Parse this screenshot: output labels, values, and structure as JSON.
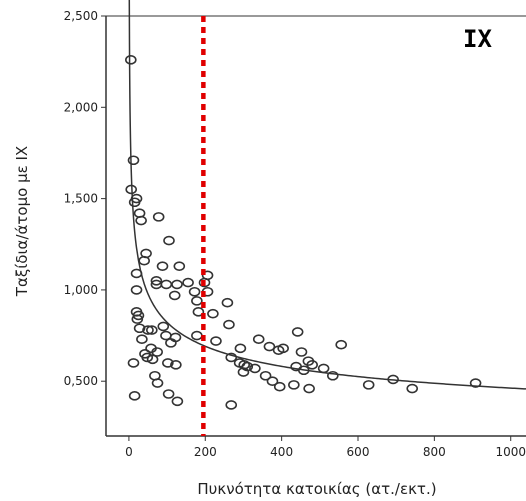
{
  "chart_data": {
    "type": "scatter",
    "panel_label": "IX",
    "xlabel": "Πυκνότητα κατοικίας (ατ./εκτ.)",
    "ylabel": "Ταξίδια/άτομο με ΙΧ",
    "xlim": [
      -60,
      1040
    ],
    "ylim": [
      0.2,
      2.5
    ],
    "x_ticks": [
      0,
      200,
      400,
      600,
      800,
      1000
    ],
    "x_tick_labels": [
      "0",
      "200",
      "400",
      "600",
      "800",
      "1000"
    ],
    "y_ticks": [
      0.5,
      1.0,
      1.5,
      2.0,
      2.5
    ],
    "y_tick_labels": [
      "0,500",
      "1,000",
      "1,500",
      "2,000",
      "2,500"
    ],
    "grid": false,
    "marker": "open-circle",
    "reference_line": {
      "x": 195,
      "color": "#e00000",
      "style": "dotted"
    },
    "fit_curve": {
      "type": "power",
      "a": 2.6,
      "b": -0.25,
      "x_start": 1,
      "x_end": 1040,
      "color": "#333333"
    },
    "points": [
      {
        "x": 5,
        "y": 2.26
      },
      {
        "x": 12,
        "y": 1.71
      },
      {
        "x": 6,
        "y": 1.55
      },
      {
        "x": 15,
        "y": 1.48
      },
      {
        "x": 20,
        "y": 1.5
      },
      {
        "x": 28,
        "y": 1.42
      },
      {
        "x": 32,
        "y": 1.38
      },
      {
        "x": 45,
        "y": 1.2
      },
      {
        "x": 78,
        "y": 1.4
      },
      {
        "x": 105,
        "y": 1.27
      },
      {
        "x": 40,
        "y": 1.16
      },
      {
        "x": 20,
        "y": 1.09
      },
      {
        "x": 88,
        "y": 1.13
      },
      {
        "x": 132,
        "y": 1.13
      },
      {
        "x": 98,
        "y": 1.03
      },
      {
        "x": 72,
        "y": 1.05
      },
      {
        "x": 72,
        "y": 1.03
      },
      {
        "x": 20,
        "y": 1.0
      },
      {
        "x": 126,
        "y": 1.03
      },
      {
        "x": 155,
        "y": 1.04
      },
      {
        "x": 120,
        "y": 0.97
      },
      {
        "x": 172,
        "y": 0.99
      },
      {
        "x": 198,
        "y": 1.04
      },
      {
        "x": 206,
        "y": 1.08
      },
      {
        "x": 206,
        "y": 0.99
      },
      {
        "x": 178,
        "y": 0.94
      },
      {
        "x": 220,
        "y": 0.87
      },
      {
        "x": 258,
        "y": 0.93
      },
      {
        "x": 20,
        "y": 0.88
      },
      {
        "x": 22,
        "y": 0.84
      },
      {
        "x": 25,
        "y": 0.86
      },
      {
        "x": 28,
        "y": 0.79
      },
      {
        "x": 50,
        "y": 0.78
      },
      {
        "x": 60,
        "y": 0.78
      },
      {
        "x": 90,
        "y": 0.8
      },
      {
        "x": 97,
        "y": 0.75
      },
      {
        "x": 122,
        "y": 0.74
      },
      {
        "x": 178,
        "y": 0.75
      },
      {
        "x": 182,
        "y": 0.88
      },
      {
        "x": 262,
        "y": 0.81
      },
      {
        "x": 228,
        "y": 0.72
      },
      {
        "x": 268,
        "y": 0.63
      },
      {
        "x": 34,
        "y": 0.73
      },
      {
        "x": 58,
        "y": 0.68
      },
      {
        "x": 74,
        "y": 0.66
      },
      {
        "x": 48,
        "y": 0.63
      },
      {
        "x": 42,
        "y": 0.65
      },
      {
        "x": 12,
        "y": 0.6
      },
      {
        "x": 62,
        "y": 0.62
      },
      {
        "x": 102,
        "y": 0.6
      },
      {
        "x": 110,
        "y": 0.71
      },
      {
        "x": 123,
        "y": 0.59
      },
      {
        "x": 292,
        "y": 0.68
      },
      {
        "x": 340,
        "y": 0.73
      },
      {
        "x": 368,
        "y": 0.69
      },
      {
        "x": 404,
        "y": 0.68
      },
      {
        "x": 392,
        "y": 0.67
      },
      {
        "x": 442,
        "y": 0.77
      },
      {
        "x": 452,
        "y": 0.66
      },
      {
        "x": 470,
        "y": 0.61
      },
      {
        "x": 480,
        "y": 0.59
      },
      {
        "x": 510,
        "y": 0.57
      },
      {
        "x": 438,
        "y": 0.58
      },
      {
        "x": 458,
        "y": 0.56
      },
      {
        "x": 310,
        "y": 0.58
      },
      {
        "x": 300,
        "y": 0.55
      },
      {
        "x": 330,
        "y": 0.57
      },
      {
        "x": 358,
        "y": 0.53
      },
      {
        "x": 376,
        "y": 0.5
      },
      {
        "x": 395,
        "y": 0.47
      },
      {
        "x": 432,
        "y": 0.48
      },
      {
        "x": 472,
        "y": 0.46
      },
      {
        "x": 534,
        "y": 0.53
      },
      {
        "x": 556,
        "y": 0.7
      },
      {
        "x": 628,
        "y": 0.48
      },
      {
        "x": 692,
        "y": 0.51
      },
      {
        "x": 742,
        "y": 0.46
      },
      {
        "x": 908,
        "y": 0.49
      },
      {
        "x": 68,
        "y": 0.53
      },
      {
        "x": 75,
        "y": 0.49
      },
      {
        "x": 104,
        "y": 0.43
      },
      {
        "x": 127,
        "y": 0.39
      },
      {
        "x": 15,
        "y": 0.42
      },
      {
        "x": 268,
        "y": 0.37
      },
      {
        "x": 290,
        "y": 0.6
      },
      {
        "x": 302,
        "y": 0.59
      }
    ]
  }
}
